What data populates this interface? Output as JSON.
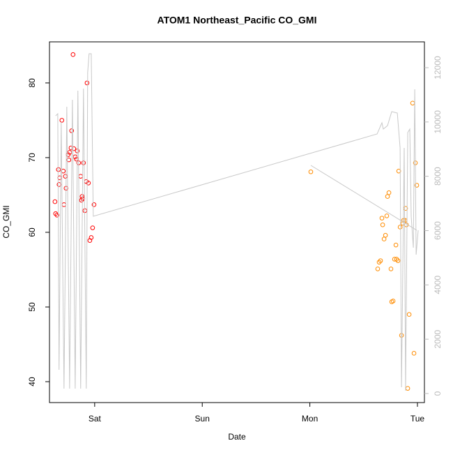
{
  "chart_data": {
    "type": "scatter",
    "title": "ATOM1 Northeast_Pacific CO_GMI",
    "x_label": "Date",
    "y_label": "CO_GMI",
    "xlim": [
      0.58,
      4.065
    ],
    "ylim": [
      37.2,
      85.5
    ],
    "y2lim": [
      -334,
      12950
    ],
    "xticks": [
      {
        "value": 1,
        "label": "Sat"
      },
      {
        "value": 2,
        "label": "Sun"
      },
      {
        "value": 3,
        "label": "Mon"
      },
      {
        "value": 4,
        "label": "Tue"
      }
    ],
    "yticks": [
      40,
      50,
      60,
      70,
      80
    ],
    "y2ticks": [
      0,
      2000,
      4000,
      6000,
      8000,
      10000,
      12000
    ],
    "series": [
      {
        "type": "scatter",
        "color": "#ff0000",
        "x": [
          0.631,
          0.637,
          0.65,
          0.663,
          0.669,
          0.676,
          0.695,
          0.708,
          0.715,
          0.728,
          0.734,
          0.754,
          0.76,
          0.767,
          0.78,
          0.786,
          0.799,
          0.806,
          0.819,
          0.831,
          0.838,
          0.851,
          0.87,
          0.877,
          0.883,
          0.89,
          0.896,
          0.909,
          0.922,
          0.929,
          0.942,
          0.955,
          0.968,
          0.981,
          0.994
        ],
        "values": [
          64.1,
          62.5,
          62.3,
          68.4,
          66.4,
          67.3,
          75.0,
          68.2,
          63.7,
          67.5,
          65.9,
          70.4,
          69.7,
          70.7,
          71.3,
          73.6,
          83.8,
          71.2,
          70.1,
          69.8,
          70.9,
          69.3,
          67.5,
          64.3,
          64.8,
          64.5,
          69.3,
          62.9,
          66.8,
          80.0,
          66.6,
          58.9,
          59.3,
          60.6,
          63.7
        ]
      },
      {
        "type": "scatter",
        "color": "#ff8c00",
        "x": [
          3.009,
          3.631,
          3.644,
          3.657,
          3.67,
          3.677,
          3.69,
          3.703,
          3.715,
          3.722,
          3.735,
          3.754,
          3.761,
          3.774,
          3.787,
          3.8,
          3.806,
          3.819,
          3.826,
          3.839,
          3.852,
          3.865,
          3.871,
          3.884,
          3.89,
          3.897,
          3.91,
          3.923,
          3.955,
          3.968,
          3.981,
          3.994
        ],
        "values": [
          68.1,
          55.1,
          56.0,
          56.2,
          61.9,
          61.0,
          59.1,
          59.6,
          62.2,
          64.8,
          65.3,
          55.1,
          50.7,
          50.8,
          56.4,
          58.3,
          56.4,
          56.2,
          68.2,
          60.7,
          46.2,
          61.2,
          61.6,
          61.6,
          63.2,
          61.0,
          39.1,
          49.0,
          77.3,
          43.8,
          69.3,
          66.3
        ]
      },
      {
        "type": "line",
        "axis": "y2",
        "color": "#c8c8c8",
        "x": [
          0.637,
          0.657,
          0.669,
          0.689,
          0.715,
          0.741,
          0.767,
          0.793,
          0.819,
          0.844,
          0.87,
          0.896,
          0.922,
          0.935,
          0.948,
          0.968,
          0.987,
          3.625,
          3.67,
          3.683,
          3.722,
          3.761,
          3.813,
          3.839,
          3.852,
          3.877,
          3.89,
          3.91,
          3.929,
          3.942,
          3.962,
          3.975,
          3.988,
          4.007,
          null,
          3.009,
          3.994
        ],
        "values": [
          10226,
          10303,
          874,
          9995,
          180,
          10560,
          180,
          10817,
          180,
          11151,
          180,
          11228,
          180,
          11819,
          12513,
          12513,
          6526,
          9558,
          9969,
          9738,
          9866,
          10380,
          10329,
          9044,
          231,
          9044,
          103,
          9609,
          9738,
          6526,
          5370,
          11202,
          5113,
          6012,
          null,
          8402,
          6012
        ]
      }
    ]
  }
}
